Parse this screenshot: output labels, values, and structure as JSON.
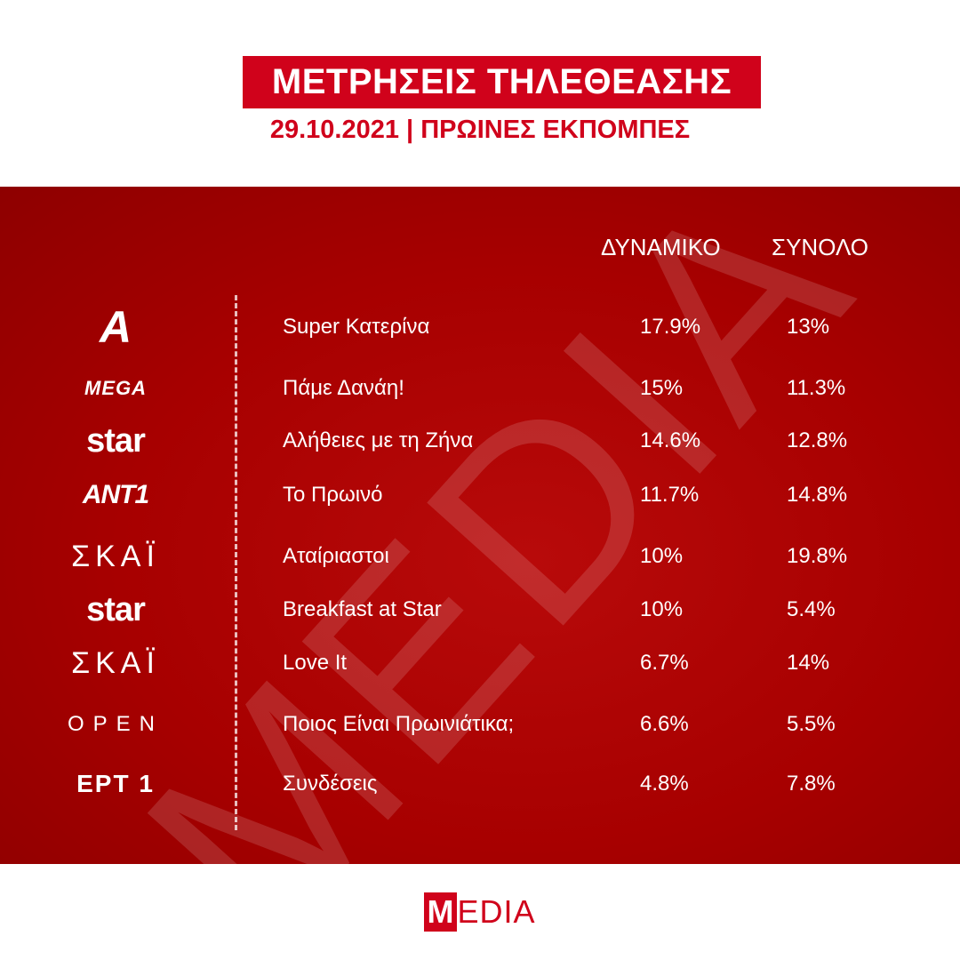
{
  "header": {
    "title": "ΜΕΤΡΗΣΕΙΣ ΤΗΛΕΘΕΑΣΗΣ",
    "subtitle": "29.10.2021 | ΠΡΩΙΝΕΣ ΕΚΠΟΜΠΕΣ"
  },
  "table": {
    "columns": {
      "dynamic": "ΔΥΝΑΜΙΚΟ",
      "total": "ΣΥΝΟΛΟ"
    },
    "rows": [
      {
        "channel_logo": "Α",
        "show": "Super Κατερίνα",
        "dynamic": "17.9%",
        "total": "13%"
      },
      {
        "channel_logo": "MEGA",
        "show": "Πάμε Δανάη!",
        "dynamic": "15%",
        "total": "11.3%"
      },
      {
        "channel_logo": "star",
        "show": "Αλήθειες με τη Ζήνα",
        "dynamic": "14.6%",
        "total": "12.8%"
      },
      {
        "channel_logo": "ANT1",
        "show": "Το Πρωινό",
        "dynamic": "11.7%",
        "total": "14.8%"
      },
      {
        "channel_logo": "ΣΚΑΪ",
        "show": "Αταίριαστοι",
        "dynamic": "10%",
        "total": "19.8%"
      },
      {
        "channel_logo": "star",
        "show": "Breakfast at Star",
        "dynamic": "10%",
        "total": "5.4%"
      },
      {
        "channel_logo": "ΣΚΑΪ",
        "show": "Love It",
        "dynamic": "6.7%",
        "total": "14%"
      },
      {
        "channel_logo": "OPEN",
        "show": "Ποιος Είναι Πρωινιάτικα;",
        "dynamic": "6.6%",
        "total": "5.5%"
      },
      {
        "channel_logo": "ΕΡΤ 1",
        "show": "Συνδέσεις",
        "dynamic": "4.8%",
        "total": "7.8%"
      }
    ]
  },
  "watermark": "MEDIA",
  "footer": {
    "logo_first": "M",
    "logo_rest": "EDIA"
  },
  "colors": {
    "brand_red": "#d0021b",
    "panel_red": "#a70000"
  }
}
